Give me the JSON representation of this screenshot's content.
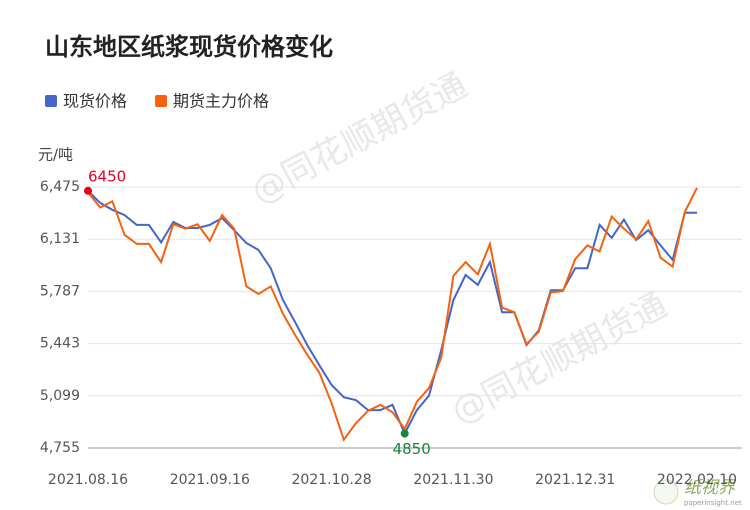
{
  "chart_data": {
    "type": "line",
    "title": "山东地区纸浆现货价格变化",
    "y_unit": "元/吨",
    "categories": [
      "2021.08.16",
      null,
      null,
      null,
      null,
      null,
      null,
      null,
      null,
      null,
      "2021.09.16",
      null,
      null,
      null,
      null,
      null,
      null,
      null,
      null,
      null,
      "2021.10.28",
      null,
      null,
      null,
      null,
      null,
      null,
      null,
      null,
      null,
      "2021.11.30",
      null,
      null,
      null,
      null,
      null,
      null,
      null,
      null,
      null,
      "2021.12.31",
      null,
      null,
      null,
      null,
      null,
      null,
      null,
      null,
      null,
      "2022.02.10"
    ],
    "series": [
      {
        "name": "现货价格",
        "color": "#4565c8",
        "values": [
          6450,
          6370,
          6325,
          6290,
          6225,
          6225,
          6110,
          6245,
          6205,
          6205,
          6225,
          6270,
          6190,
          6106,
          6060,
          5940,
          5730,
          5585,
          5434,
          5300,
          5170,
          5090,
          5070,
          5005,
          5005,
          5040,
          4850,
          5005,
          5100,
          5400,
          5730,
          5895,
          5830,
          5980,
          5650,
          5650,
          5434,
          5530,
          5795,
          5795,
          5940,
          5940,
          6225,
          6140,
          6260,
          6125,
          6190,
          6090,
          5995,
          6305,
          6305
        ]
      },
      {
        "name": "期货主力价格",
        "color": "#f5620f",
        "values": [
          6440,
          6340,
          6380,
          6160,
          6100,
          6100,
          5980,
          6230,
          6200,
          6230,
          6120,
          6290,
          6200,
          5820,
          5770,
          5820,
          5640,
          5500,
          5370,
          5250,
          5050,
          4810,
          4920,
          5000,
          5040,
          4990,
          4880,
          5060,
          5150,
          5350,
          5890,
          5980,
          5900,
          6100,
          5680,
          5650,
          5440,
          5520,
          5780,
          5790,
          6000,
          6090,
          6050,
          6280,
          6200,
          6130,
          6250,
          6010,
          5950,
          6310,
          6470
        ]
      }
    ],
    "ylim": [
      4755,
      6475
    ],
    "yticks": [
      {
        "value": 4755,
        "label": "4,755"
      },
      {
        "value": 5099,
        "label": "5,099"
      },
      {
        "value": 5443,
        "label": "5,443"
      },
      {
        "value": 5787,
        "label": "5,787"
      },
      {
        "value": 6131,
        "label": "6,131"
      },
      {
        "value": 6475,
        "label": "6,475"
      }
    ],
    "grid": true,
    "annotations": [
      {
        "text": "6450",
        "color": "#e60023"
      },
      {
        "text": "4850",
        "color": "#14873c"
      }
    ],
    "watermark": "@同花顺期货通",
    "logo": {
      "name": "纸视界",
      "url": "paperinsight.net"
    }
  }
}
